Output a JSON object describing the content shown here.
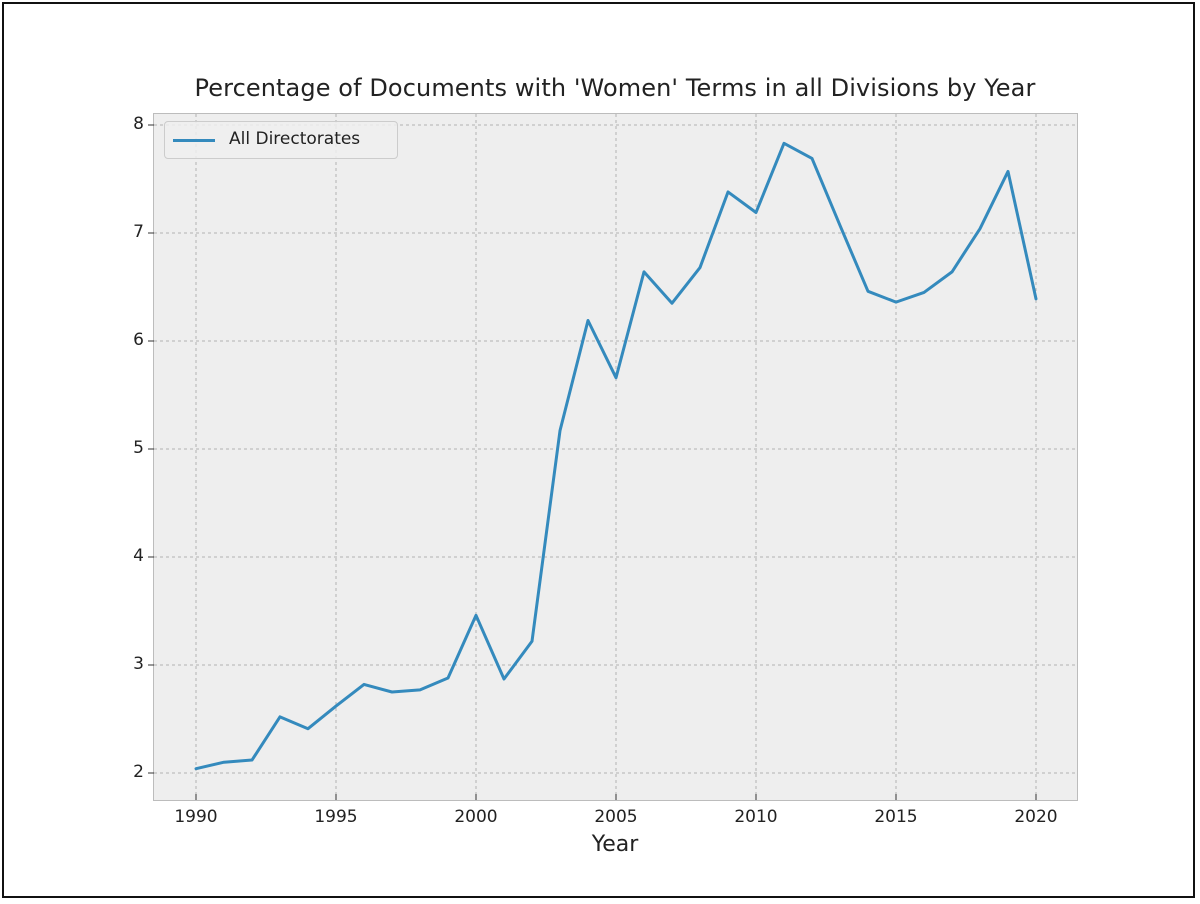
{
  "chart_data": {
    "type": "line",
    "title": "Percentage of Documents with 'Women' Terms in all Divisions by Year",
    "xlabel": "Year",
    "ylabel": "",
    "xlim": [
      1988.5,
      2021.5
    ],
    "ylim": [
      1.75,
      8.1
    ],
    "x_ticks": [
      1990,
      1995,
      2000,
      2005,
      2010,
      2015,
      2020
    ],
    "y_ticks": [
      2,
      3,
      4,
      5,
      6,
      7,
      8
    ],
    "grid": true,
    "legend_position": "upper left",
    "x": [
      1990,
      1991,
      1992,
      1993,
      1994,
      1995,
      1996,
      1997,
      1998,
      1999,
      2000,
      2001,
      2002,
      2003,
      2004,
      2005,
      2006,
      2007,
      2008,
      2009,
      2010,
      2011,
      2012,
      2013,
      2014,
      2015,
      2016,
      2017,
      2018,
      2019,
      2020
    ],
    "series": [
      {
        "name": "All Directorates",
        "color": "#348abd",
        "values": [
          2.04,
          2.1,
          2.12,
          2.52,
          2.41,
          2.62,
          2.82,
          2.75,
          2.77,
          2.88,
          3.46,
          2.87,
          3.22,
          5.17,
          6.19,
          5.66,
          6.64,
          6.35,
          6.68,
          7.38,
          7.19,
          7.83,
          7.69,
          7.07,
          6.46,
          6.36,
          6.45,
          6.64,
          7.04,
          7.57,
          6.39
        ]
      }
    ]
  },
  "labels": {
    "title": "Percentage of Documents with 'Women' Terms in all Divisions by Year",
    "xlabel": "Year",
    "legend": "All Directorates",
    "x_ticks": [
      "1990",
      "1995",
      "2000",
      "2005",
      "2010",
      "2015",
      "2020"
    ],
    "y_ticks": [
      "8",
      "7",
      "6",
      "5",
      "4",
      "3",
      "2"
    ]
  }
}
